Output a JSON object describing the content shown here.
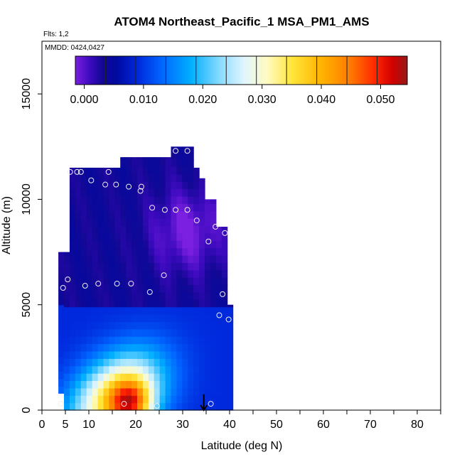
{
  "chart_data": {
    "type": "heatmap",
    "title": "ATOM4 Northeast_Pacific_1 MSA_PM1_AMS",
    "notes": {
      "flights": "Flts: 1,2",
      "dates": "MMDD: 0424,0427"
    },
    "xlabel": "Latitude (deg N)",
    "ylabel": "Altitude (m)",
    "xlim": [
      0,
      85
    ],
    "ylim": [
      0,
      17500
    ],
    "x_ticks": [
      0,
      5,
      10,
      20,
      30,
      40,
      50,
      60,
      70,
      80
    ],
    "y_ticks": [
      0,
      5000,
      10000,
      15000
    ],
    "grid": false,
    "colorbar": {
      "placement": "top-inside",
      "range": [
        -0.0015,
        0.0545
      ],
      "tick_values": [
        0.0,
        0.01,
        0.02,
        0.03,
        0.04,
        0.05
      ],
      "tick_labels": [
        "0.000",
        "0.010",
        "0.020",
        "0.030",
        "0.040",
        "0.050"
      ],
      "colors": [
        "#7b1fe0",
        "#4d0cc8",
        "#1a0a9e",
        "#000c8f",
        "#0016b8",
        "#0033e6",
        "#0066ff",
        "#0099ff",
        "#00bbff",
        "#66d4ff",
        "#b8eaff",
        "#eefaff",
        "#ffffcc",
        "#ffef66",
        "#ffd21a",
        "#ffb300",
        "#ff8c00",
        "#ff5a00",
        "#ff1a00",
        "#e00000",
        "#b80000",
        "#9c1a1a"
      ]
    },
    "data_lat_range": [
      3.5,
      40
    ],
    "observations": [
      {
        "lat": 4,
        "alt": 300
      },
      {
        "lat": 4.5,
        "alt": 5800
      },
      {
        "lat": 5.5,
        "alt": 6200
      },
      {
        "lat": 6,
        "alt": 11300
      },
      {
        "lat": 7.5,
        "alt": 11300
      },
      {
        "lat": 8.3,
        "alt": 11300
      },
      {
        "lat": 9.2,
        "alt": 5900
      },
      {
        "lat": 10.5,
        "alt": 10900
      },
      {
        "lat": 12,
        "alt": 6000
      },
      {
        "lat": 13.5,
        "alt": 10700
      },
      {
        "lat": 14.2,
        "alt": 11300
      },
      {
        "lat": 15.8,
        "alt": 10700
      },
      {
        "lat": 16,
        "alt": 6000
      },
      {
        "lat": 17.5,
        "alt": 300
      },
      {
        "lat": 18.5,
        "alt": 10600
      },
      {
        "lat": 19,
        "alt": 6000
      },
      {
        "lat": 21,
        "alt": 10400
      },
      {
        "lat": 21.2,
        "alt": 10600
      },
      {
        "lat": 23,
        "alt": 5600
      },
      {
        "lat": 23.5,
        "alt": 9600
      },
      {
        "lat": 24.5,
        "alt": 200
      },
      {
        "lat": 26,
        "alt": 6400
      },
      {
        "lat": 26.2,
        "alt": 9500
      },
      {
        "lat": 28.5,
        "alt": 9500
      },
      {
        "lat": 28.5,
        "alt": 12300
      },
      {
        "lat": 31,
        "alt": 9500
      },
      {
        "lat": 31,
        "alt": 12300
      },
      {
        "lat": 33,
        "alt": 9000
      },
      {
        "lat": 35.5,
        "alt": 8000
      },
      {
        "lat": 36,
        "alt": 300
      },
      {
        "lat": 37,
        "alt": 8700
      },
      {
        "lat": 37.8,
        "alt": 4500
      },
      {
        "lat": 38.5,
        "alt": 5500
      },
      {
        "lat": 39,
        "alt": 8400
      },
      {
        "lat": 39.8,
        "alt": 4300
      }
    ],
    "arrow": {
      "lat": 34.5,
      "alt_top": 750,
      "alt_bottom": 0
    }
  }
}
